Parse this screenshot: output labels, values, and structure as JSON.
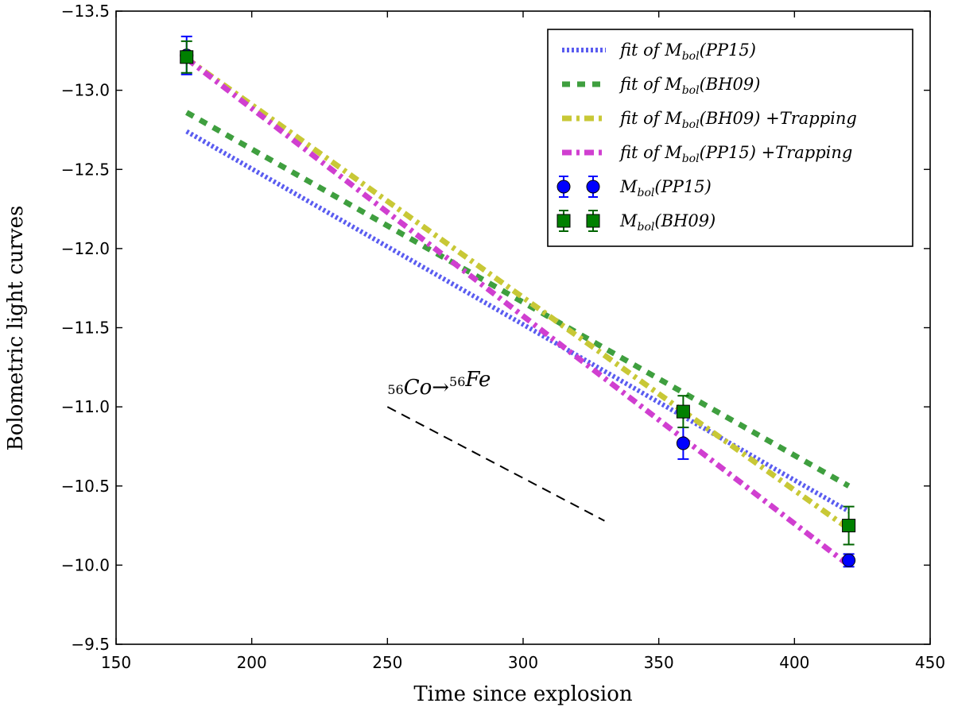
{
  "chart_data": {
    "type": "line",
    "title": "",
    "xlabel": "Time since explosion",
    "ylabel": "Bolometric light curves",
    "xlim": [
      150,
      450
    ],
    "ylim": [
      -9.5,
      -13.5
    ],
    "y_inverted": true,
    "grid": false,
    "legend_position": "top-right",
    "x_ticks": [
      "150",
      "200",
      "250",
      "300",
      "350",
      "400",
      "450"
    ],
    "y_ticks": [
      "−13.5",
      "−13.0",
      "−12.5",
      "−12.0",
      "−11.5",
      "−11.0",
      "−10.5",
      "−10.0",
      "−9.5"
    ],
    "fit_lines": [
      {
        "name": "fit of M_bol(PP15)",
        "legend_label": "fit of M",
        "legend_sub": "bol",
        "legend_rest": "(PP15)",
        "color": "#5a5cf0",
        "style": "dotted",
        "x": [
          176,
          420
        ],
        "y": [
          -12.74,
          -10.34
        ]
      },
      {
        "name": "fit of M_bol(BH09)",
        "legend_label": "fit of M",
        "legend_sub": "bol",
        "legend_rest": "(BH09)",
        "color": "#3f9f3f",
        "style": "dashed",
        "x": [
          176,
          420
        ],
        "y": [
          -12.86,
          -10.5
        ]
      },
      {
        "name": "fit of M_bol(BH09)+Trapping",
        "legend_label": "fit of M",
        "legend_sub": "bol",
        "legend_rest": "(BH09) +Trapping",
        "color": "#c8c836",
        "style": "dashdot",
        "x": [
          176,
          420
        ],
        "y": [
          -13.2,
          -10.23
        ]
      },
      {
        "name": "fit of M_bol(PP15)+Trapping",
        "legend_label": "fit of M",
        "legend_sub": "bol",
        "legend_rest": "(PP15) +Trapping",
        "color": "#d03fd0",
        "style": "dashdot",
        "x": [
          176,
          420
        ],
        "y": [
          -13.2,
          -10.0
        ]
      }
    ],
    "data_series": [
      {
        "name": "M_bol(PP15)",
        "legend_label": "M",
        "legend_sub": "bol",
        "legend_rest": "(PP15)",
        "marker": "circle",
        "color": "#0000ff",
        "error_color": "#0000ff",
        "x": [
          176,
          359,
          420
        ],
        "y": [
          -13.22,
          -10.77,
          -10.03
        ],
        "yerr": [
          0.12,
          0.1,
          0.04
        ]
      },
      {
        "name": "M_bol(BH09)",
        "legend_label": "M",
        "legend_sub": "bol",
        "legend_rest": "(BH09)",
        "marker": "square",
        "color": "#008000",
        "error_color": "#006400",
        "x": [
          176,
          359,
          420
        ],
        "y": [
          -13.21,
          -10.97,
          -10.25
        ],
        "yerr": [
          0.1,
          0.1,
          0.12
        ]
      }
    ],
    "annotation": {
      "text_a_sup": "56",
      "text_a": "Co",
      "arrow": "→",
      "text_b_sup": "56",
      "text_b": "Fe",
      "text_x": 250,
      "text_y": -11.0,
      "slope_line": {
        "x": [
          250,
          330
        ],
        "y": [
          -11.0,
          -10.28
        ],
        "color": "#000000",
        "style": "dashed"
      }
    }
  }
}
